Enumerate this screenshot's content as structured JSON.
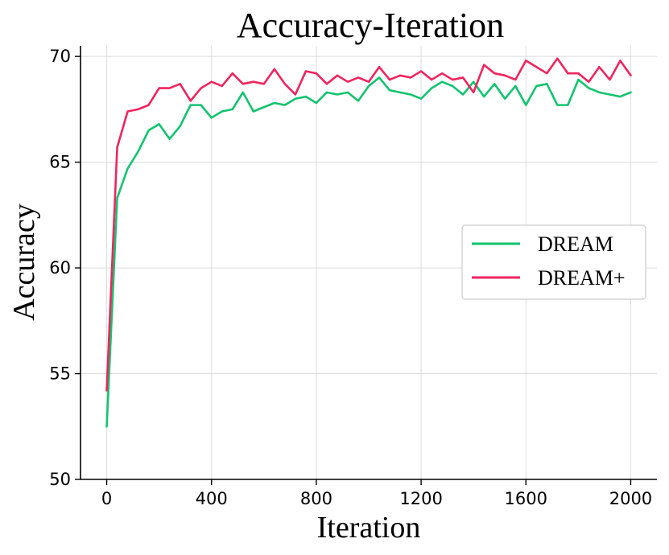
{
  "chart_data": {
    "type": "line",
    "title": "Accuracy-Iteration",
    "xlabel": "Iteration",
    "ylabel": "Accuracy",
    "xlim": [
      -100,
      2100
    ],
    "ylim": [
      50,
      70.5
    ],
    "xticks": [
      0,
      400,
      800,
      1200,
      1600,
      2000
    ],
    "yticks": [
      50,
      55,
      60,
      65,
      70
    ],
    "grid": true,
    "legend_position": "center-right",
    "x": [
      0,
      40,
      80,
      120,
      160,
      200,
      240,
      280,
      320,
      360,
      400,
      440,
      480,
      520,
      560,
      600,
      640,
      680,
      720,
      760,
      800,
      840,
      880,
      920,
      960,
      1000,
      1040,
      1080,
      1120,
      1160,
      1200,
      1240,
      1280,
      1320,
      1360,
      1400,
      1440,
      1480,
      1520,
      1560,
      1600,
      1640,
      1680,
      1720,
      1760,
      1800,
      1840,
      1880,
      1920,
      1960,
      2000
    ],
    "series": [
      {
        "name": "DREAM",
        "color": "#11c46e",
        "values": [
          52.5,
          63.3,
          64.7,
          65.5,
          66.5,
          66.8,
          66.1,
          66.7,
          67.7,
          67.7,
          67.1,
          67.4,
          67.5,
          68.3,
          67.4,
          67.6,
          67.8,
          67.7,
          68.0,
          68.1,
          67.8,
          68.3,
          68.2,
          68.3,
          67.9,
          68.6,
          69.0,
          68.4,
          68.3,
          68.2,
          68.0,
          68.5,
          68.8,
          68.6,
          68.2,
          68.8,
          68.1,
          68.7,
          68.0,
          68.6,
          67.7,
          68.6,
          68.7,
          67.7,
          67.7,
          68.9,
          68.5,
          68.3,
          68.2,
          68.1,
          68.3
        ]
      },
      {
        "name": "DREAM+",
        "color": "#f0245e",
        "values": [
          54.2,
          65.7,
          67.4,
          67.5,
          67.7,
          68.5,
          68.5,
          68.7,
          67.9,
          68.5,
          68.8,
          68.6,
          69.2,
          68.7,
          68.8,
          68.7,
          69.4,
          68.7,
          68.2,
          69.3,
          69.2,
          68.7,
          69.1,
          68.8,
          69.0,
          68.8,
          69.5,
          68.9,
          69.1,
          69.0,
          69.3,
          68.9,
          69.2,
          68.9,
          69.0,
          68.3,
          69.6,
          69.2,
          69.1,
          68.9,
          69.8,
          69.5,
          69.2,
          69.9,
          69.2,
          69.2,
          68.8,
          69.5,
          68.9,
          69.8,
          69.1
        ]
      }
    ]
  }
}
